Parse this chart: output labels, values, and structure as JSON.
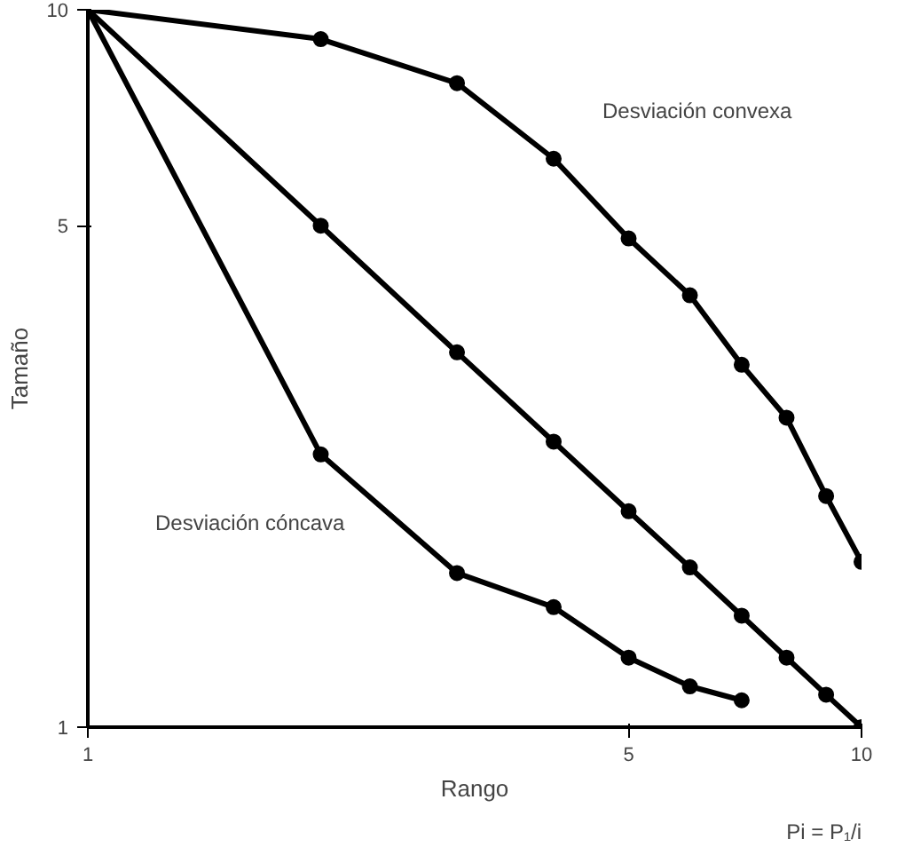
{
  "chart_data": {
    "type": "line",
    "xlabel": "Rango",
    "ylabel": "Tamaño",
    "log": "xy",
    "xlim": [
      1,
      10
    ],
    "ylim": [
      1,
      10
    ],
    "xticks": [
      1,
      5,
      10
    ],
    "yticks": [
      1,
      5,
      10
    ],
    "grid": false,
    "marker": "circle",
    "line_style": "solid",
    "series": [
      {
        "color": "#000000",
        "x": [
          1,
          2,
          3,
          4,
          5,
          6,
          7,
          8,
          9,
          10
        ],
        "values": [
          10,
          9.1,
          7.9,
          6.2,
          4.8,
          4.0,
          3.2,
          2.7,
          2.1,
          1.7
        ]
      },
      {
        "color": "#000000",
        "x": [
          1,
          2,
          3,
          4,
          5,
          6,
          7,
          8,
          9,
          10
        ],
        "values": [
          10,
          5,
          3.33,
          2.5,
          2,
          1.67,
          1.43,
          1.25,
          1.11,
          1
        ]
      },
      {
        "color": "#000000",
        "x": [
          1,
          2,
          3,
          4,
          5,
          6,
          7
        ],
        "values": [
          10,
          2.4,
          1.64,
          1.47,
          1.25,
          1.14,
          1.09
        ]
      }
    ],
    "annotations": [
      "Desviación convexa",
      "Desviación cóncava",
      "Pi = P₁/i"
    ]
  }
}
